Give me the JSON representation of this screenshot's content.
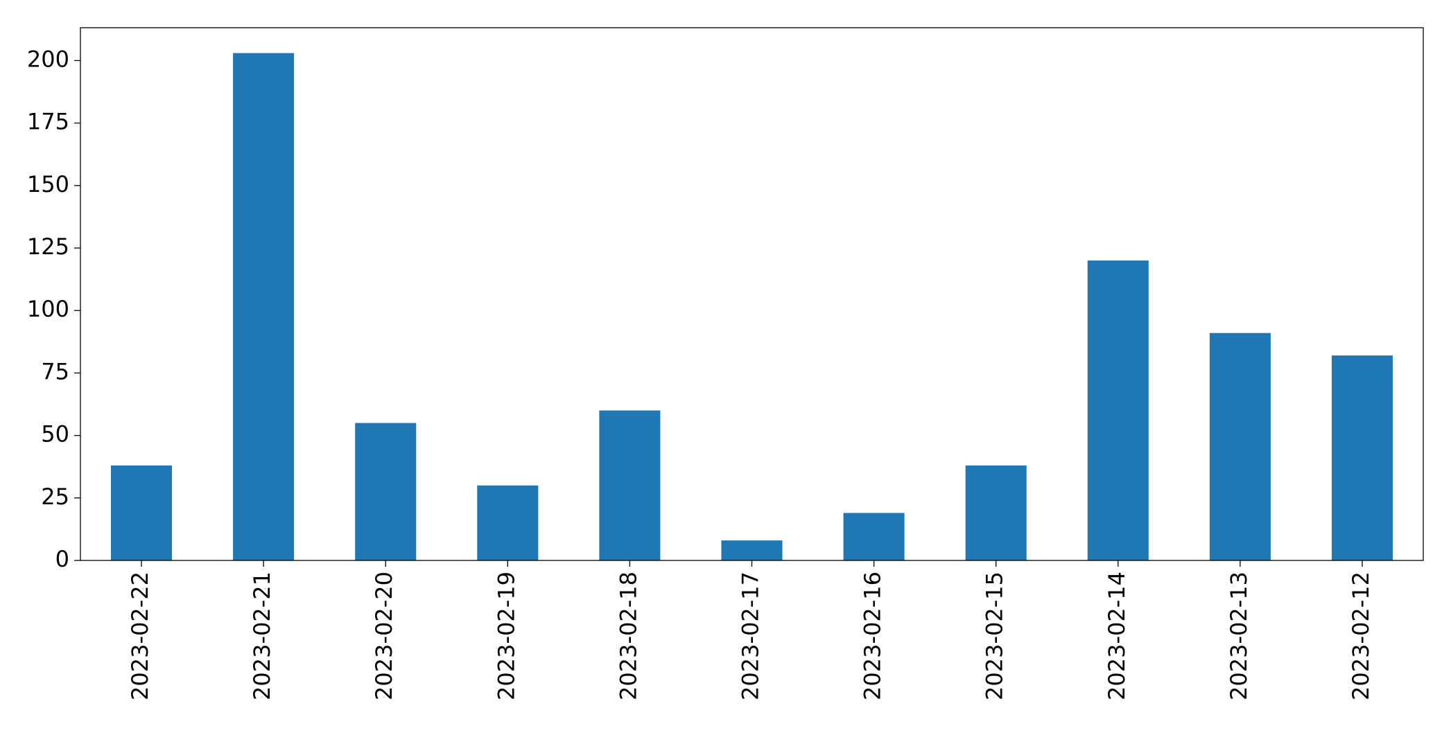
{
  "chart_data": {
    "type": "bar",
    "categories": [
      "2023-02-22",
      "2023-02-21",
      "2023-02-20",
      "2023-02-19",
      "2023-02-18",
      "2023-02-17",
      "2023-02-16",
      "2023-02-15",
      "2023-02-14",
      "2023-02-13",
      "2023-02-12"
    ],
    "values": [
      38,
      203,
      55,
      30,
      60,
      8,
      19,
      38,
      120,
      91,
      82
    ],
    "color": "#1f77b4",
    "ylim": [
      0,
      213.15
    ],
    "yticks": [
      0,
      25,
      50,
      75,
      100,
      125,
      150,
      175,
      200
    ],
    "grid": false
  }
}
